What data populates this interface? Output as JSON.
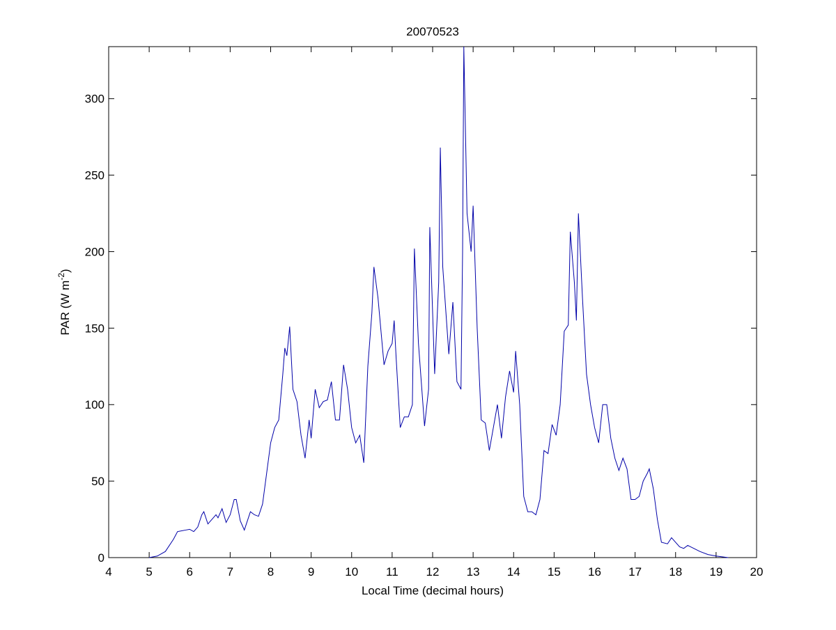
{
  "chart_data": {
    "type": "line",
    "title": "20070523",
    "xlabel": "Local Time (decimal hours)",
    "ylabel": [
      "PAR (W m",
      "-2",
      ")"
    ],
    "color": "#0000a8",
    "xlim": [
      4,
      20
    ],
    "xticks": [
      4,
      5,
      6,
      7,
      8,
      9,
      10,
      11,
      12,
      13,
      14,
      15,
      16,
      17,
      18,
      19,
      20
    ],
    "ylim": [
      0,
      334
    ],
    "yticks": [
      0,
      50,
      100,
      150,
      200,
      250,
      300
    ],
    "grid": false,
    "box": true,
    "x": [
      5.0,
      5.2,
      5.4,
      5.6,
      5.7,
      5.9,
      6.0,
      6.1,
      6.2,
      6.3,
      6.35,
      6.45,
      6.55,
      6.65,
      6.7,
      6.8,
      6.9,
      7.0,
      7.1,
      7.15,
      7.25,
      7.35,
      7.5,
      7.6,
      7.7,
      7.8,
      7.9,
      8.0,
      8.1,
      8.2,
      8.3,
      8.35,
      8.4,
      8.47,
      8.55,
      8.65,
      8.75,
      8.85,
      8.95,
      9.0,
      9.1,
      9.2,
      9.3,
      9.4,
      9.5,
      9.6,
      9.7,
      9.8,
      9.9,
      10.0,
      10.1,
      10.2,
      10.3,
      10.4,
      10.5,
      10.55,
      10.65,
      10.8,
      10.9,
      11.0,
      11.05,
      11.1,
      11.2,
      11.3,
      11.4,
      11.5,
      11.55,
      11.65,
      11.8,
      11.9,
      11.93,
      12.05,
      12.15,
      12.19,
      12.25,
      12.4,
      12.5,
      12.6,
      12.7,
      12.74,
      12.77,
      12.85,
      12.95,
      13.0,
      13.1,
      13.2,
      13.3,
      13.4,
      13.5,
      13.6,
      13.7,
      13.8,
      13.9,
      14.0,
      14.05,
      14.15,
      14.25,
      14.35,
      14.45,
      14.55,
      14.65,
      14.75,
      14.85,
      14.95,
      15.05,
      15.15,
      15.25,
      15.35,
      15.4,
      15.5,
      15.55,
      15.6,
      15.7,
      15.8,
      15.9,
      16.0,
      16.1,
      16.2,
      16.3,
      16.4,
      16.5,
      16.6,
      16.7,
      16.8,
      16.9,
      17.0,
      17.1,
      17.2,
      17.3,
      17.35,
      17.45,
      17.55,
      17.65,
      17.8,
      17.9,
      18.0,
      18.1,
      18.2,
      18.3,
      18.45,
      18.6,
      18.8,
      19.0,
      19.3
    ],
    "values": [
      0,
      1,
      4,
      12,
      17,
      18,
      18.5,
      17,
      20,
      28,
      30,
      22,
      25,
      28,
      26,
      32,
      23,
      28,
      38,
      38,
      24,
      18,
      30,
      28,
      27,
      35,
      55,
      75,
      85,
      90,
      120,
      137,
      132,
      151,
      110,
      102,
      80,
      65,
      90,
      78,
      110,
      98,
      102,
      103,
      115,
      90,
      90,
      126,
      110,
      85,
      75,
      80,
      62,
      125,
      160,
      190,
      170,
      126,
      135,
      140,
      155,
      130,
      85,
      92,
      92,
      100,
      202,
      140,
      86,
      110,
      216,
      120,
      180,
      268,
      190,
      133,
      167,
      115,
      110,
      200,
      334,
      225,
      200,
      230,
      150,
      90,
      88,
      70,
      85,
      100,
      78,
      105,
      122,
      108,
      135,
      100,
      40,
      30,
      30,
      28,
      38,
      70,
      68,
      87,
      80,
      100,
      148,
      152,
      213,
      180,
      155,
      225,
      170,
      120,
      100,
      85,
      75,
      100,
      100,
      78,
      65,
      57,
      65,
      58,
      38,
      38,
      40,
      50,
      55,
      58,
      45,
      25,
      10,
      9,
      13,
      10,
      7,
      6,
      8,
      6,
      4,
      2,
      1,
      0
    ]
  }
}
